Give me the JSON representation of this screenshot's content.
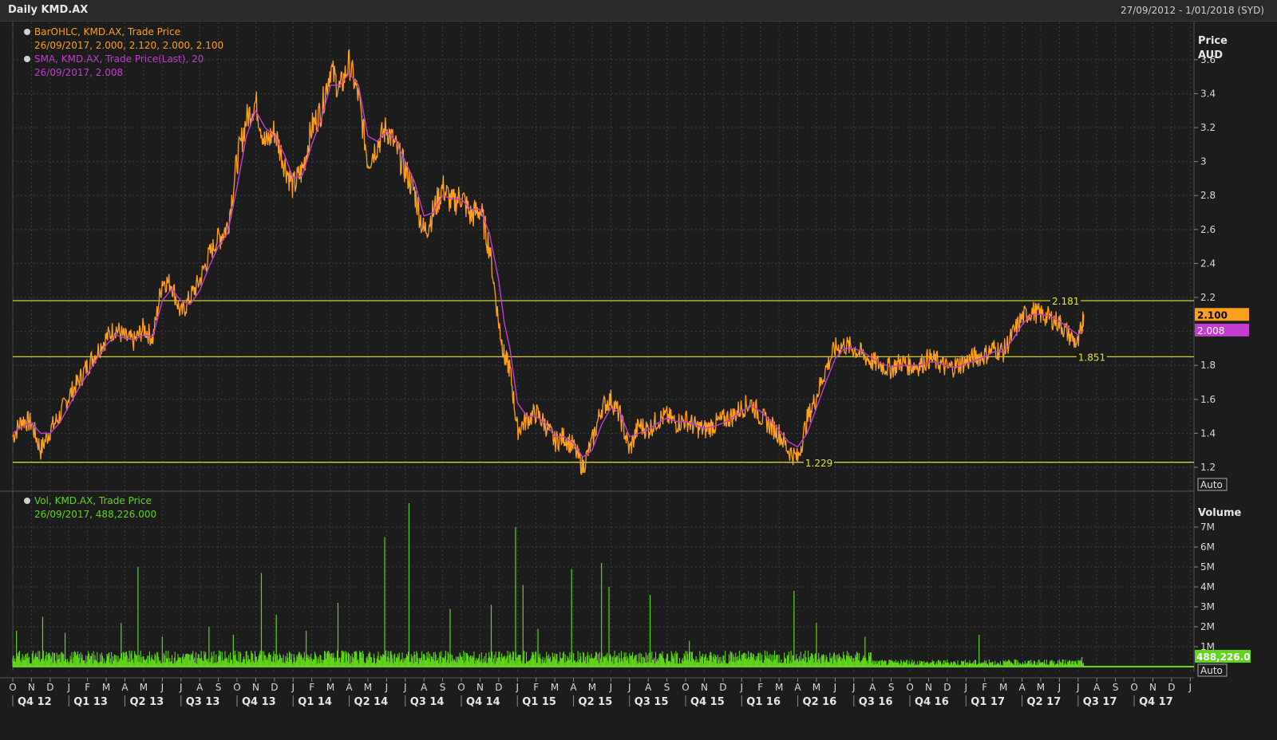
{
  "header": {
    "title": "Daily KMD.AX",
    "date_range": "27/09/2012 - 1/01/2018 (SYD)"
  },
  "colors": {
    "price": "#ff9f1c",
    "sma": "#c33ccf",
    "volume": "#5fd61a",
    "hline": "#e6e63a",
    "grid": "#3b3b3b"
  },
  "chart_data": [
    {
      "type": "line",
      "name": "price",
      "legend": [
        {
          "line1": "BarOHLC, KMD.AX, Trade Price",
          "line2": "26/09/2017, 2.000, 2.120, 2.000, 2.100",
          "color": "#ff9f1c"
        },
        {
          "line1": "SMA, KMD.AX, Trade Price(Last),  20",
          "line2": "26/09/2017, 2.008",
          "color": "#c33ccf"
        }
      ],
      "ylabel_lines": [
        "Price",
        "AUD"
      ],
      "y_ticks": [
        "1.2",
        "1.4",
        "1.6",
        "1.8",
        "2",
        "2.2",
        "2.4",
        "2.6",
        "2.8",
        "3",
        "3.2",
        "3.4",
        "3.6"
      ],
      "ylim": [
        1.12,
        3.82
      ],
      "xlim": [
        0,
        63.2
      ],
      "log_scale": false,
      "grid": true,
      "last_price_label": "2.100",
      "last_sma_label": "2.008",
      "auto_label": "Auto",
      "horizontal_lines": [
        {
          "value": 2.181,
          "label": "2.181",
          "label_x": 55.6
        },
        {
          "value": 1.851,
          "label": "1.851",
          "label_x": 57.0
        },
        {
          "value": 1.229,
          "label": "1.229",
          "label_x": 42.4
        }
      ],
      "series": [
        {
          "name": "BarOHLC, KMD.AX, Trade Price",
          "color": "#ff9f1c",
          "x": [
            0,
            0.5,
            1.0,
            1.5,
            2.0,
            2.5,
            3.0,
            3.5,
            4.0,
            4.5,
            5.0,
            5.5,
            6.0,
            6.5,
            7.0,
            7.5,
            8.0,
            8.5,
            9.0,
            9.5,
            10.0,
            10.5,
            11.0,
            11.5,
            12.0,
            12.5,
            13.0,
            13.5,
            14.0,
            14.5,
            15.0,
            15.5,
            16.0,
            16.5,
            17.0,
            17.5,
            18.0,
            18.5,
            19.0,
            19.5,
            20.0,
            20.5,
            21.0,
            21.5,
            22.0,
            22.5,
            23.0,
            23.5,
            24.0,
            24.5,
            25.0,
            25.5,
            26.0,
            26.3,
            26.6,
            27.0,
            27.5,
            28.0,
            28.5,
            29.0,
            29.5,
            30.0,
            30.5,
            31.0,
            31.5,
            32.0,
            32.5,
            33.0,
            33.5,
            34.0,
            34.5,
            35.0,
            35.5,
            36.0,
            36.5,
            37.0,
            37.5,
            38.0,
            38.5,
            39.0,
            39.5,
            40.0,
            40.5,
            41.0,
            41.5,
            42.0,
            42.5,
            43.0,
            43.5,
            44.0,
            44.5,
            45.0,
            45.5,
            46.0,
            46.5,
            47.0,
            47.5,
            48.0,
            48.5,
            49.0,
            49.5,
            50.0,
            50.5,
            51.0,
            51.5,
            52.0,
            52.5,
            53.0,
            53.5,
            54.0,
            54.5,
            55.0,
            55.5,
            56.0,
            56.5,
            57.0,
            57.3
          ],
          "y": [
            1.38,
            1.48,
            1.46,
            1.3,
            1.42,
            1.5,
            1.62,
            1.7,
            1.8,
            1.88,
            1.96,
            2.02,
            1.96,
            1.94,
            2.02,
            1.96,
            2.3,
            2.28,
            2.1,
            2.2,
            2.3,
            2.45,
            2.55,
            2.62,
            3.0,
            3.25,
            3.35,
            3.1,
            3.18,
            3.0,
            2.85,
            2.95,
            3.2,
            3.3,
            3.55,
            3.42,
            3.58,
            3.38,
            3.0,
            3.1,
            3.2,
            3.08,
            2.95,
            2.82,
            2.58,
            2.7,
            2.85,
            2.75,
            2.8,
            2.68,
            2.72,
            2.5,
            2.05,
            1.85,
            1.78,
            1.42,
            1.48,
            1.52,
            1.45,
            1.35,
            1.38,
            1.32,
            1.2,
            1.35,
            1.55,
            1.6,
            1.5,
            1.3,
            1.45,
            1.42,
            1.48,
            1.5,
            1.46,
            1.48,
            1.44,
            1.42,
            1.45,
            1.48,
            1.5,
            1.55,
            1.58,
            1.5,
            1.45,
            1.4,
            1.3,
            1.25,
            1.48,
            1.62,
            1.78,
            1.9,
            1.92,
            1.9,
            1.86,
            1.82,
            1.8,
            1.78,
            1.82,
            1.8,
            1.8,
            1.84,
            1.82,
            1.78,
            1.8,
            1.82,
            1.85,
            1.86,
            1.9,
            1.88,
            1.98,
            2.08,
            2.12,
            2.1,
            2.08,
            2.05,
            1.98,
            1.92,
            2.1
          ]
        },
        {
          "name": "SMA, KMD.AX, Trade Price(Last),  20",
          "color": "#c33ccf",
          "x": [
            0,
            0.5,
            1.0,
            1.5,
            2.0,
            2.5,
            3.0,
            3.5,
            4.0,
            4.5,
            5.0,
            5.5,
            6.0,
            6.5,
            7.0,
            7.5,
            8.0,
            8.5,
            9.0,
            9.5,
            10.0,
            10.5,
            11.0,
            11.5,
            12.0,
            12.5,
            13.0,
            13.5,
            14.0,
            14.5,
            15.0,
            15.5,
            16.0,
            16.5,
            17.0,
            17.5,
            18.0,
            18.5,
            19.0,
            19.5,
            20.0,
            20.5,
            21.0,
            21.5,
            22.0,
            22.5,
            23.0,
            23.5,
            24.0,
            24.5,
            25.0,
            25.5,
            26.0,
            26.3,
            26.6,
            27.0,
            27.5,
            28.0,
            28.5,
            29.0,
            29.5,
            30.0,
            30.5,
            31.0,
            31.5,
            32.0,
            32.5,
            33.0,
            33.5,
            34.0,
            34.5,
            35.0,
            35.5,
            36.0,
            36.5,
            37.0,
            37.5,
            38.0,
            38.5,
            39.0,
            39.5,
            40.0,
            40.5,
            41.0,
            41.5,
            42.0,
            42.5,
            43.0,
            43.5,
            44.0,
            44.5,
            45.0,
            45.5,
            46.0,
            46.5,
            47.0,
            47.5,
            48.0,
            48.5,
            49.0,
            49.5,
            50.0,
            50.5,
            51.0,
            51.5,
            52.0,
            52.5,
            53.0,
            53.5,
            54.0,
            54.5,
            55.0,
            55.5,
            56.0,
            56.5,
            57.0,
            57.3
          ],
          "y": [
            1.4,
            1.44,
            1.46,
            1.4,
            1.4,
            1.46,
            1.56,
            1.66,
            1.75,
            1.84,
            1.92,
            1.98,
            1.96,
            1.95,
            1.98,
            1.97,
            2.18,
            2.25,
            2.18,
            2.16,
            2.24,
            2.38,
            2.5,
            2.58,
            2.85,
            3.15,
            3.3,
            3.2,
            3.15,
            3.05,
            2.9,
            2.92,
            3.1,
            3.25,
            3.45,
            3.45,
            3.52,
            3.45,
            3.15,
            3.12,
            3.18,
            3.12,
            3.0,
            2.88,
            2.68,
            2.7,
            2.8,
            2.78,
            2.78,
            2.72,
            2.72,
            2.58,
            2.3,
            2.05,
            1.9,
            1.58,
            1.5,
            1.5,
            1.46,
            1.38,
            1.38,
            1.34,
            1.26,
            1.3,
            1.45,
            1.55,
            1.52,
            1.38,
            1.4,
            1.42,
            1.46,
            1.49,
            1.47,
            1.47,
            1.45,
            1.43,
            1.44,
            1.46,
            1.49,
            1.53,
            1.56,
            1.53,
            1.48,
            1.42,
            1.35,
            1.32,
            1.4,
            1.55,
            1.7,
            1.84,
            1.9,
            1.9,
            1.88,
            1.84,
            1.81,
            1.79,
            1.8,
            1.8,
            1.8,
            1.82,
            1.82,
            1.79,
            1.79,
            1.81,
            1.83,
            1.85,
            1.88,
            1.88,
            1.95,
            2.04,
            2.1,
            2.1,
            2.09,
            2.06,
            2.02,
            1.98,
            2.008
          ]
        }
      ]
    },
    {
      "type": "bar",
      "name": "volume",
      "legend": [
        {
          "line1": "Vol, KMD.AX, Trade Price",
          "line2": "26/09/2017, 488,226.000",
          "color": "#5fd61a"
        }
      ],
      "ylabel": "Volume",
      "y_ticks": [
        "1M",
        "2M",
        "3M",
        "4M",
        "5M",
        "6M",
        "7M"
      ],
      "ylim": [
        0,
        8000000
      ],
      "last_value_label": "488,226.0",
      "auto_label": "Auto",
      "base_volume": 450000,
      "spikes": [
        {
          "x": 0.2,
          "value": 1800000
        },
        {
          "x": 1.6,
          "value": 2500000
        },
        {
          "x": 2.8,
          "value": 1700000
        },
        {
          "x": 5.8,
          "value": 2200000
        },
        {
          "x": 6.7,
          "value": 5000000
        },
        {
          "x": 8.0,
          "value": 1500000
        },
        {
          "x": 10.5,
          "value": 2000000
        },
        {
          "x": 11.8,
          "value": 1600000
        },
        {
          "x": 13.3,
          "value": 4700000
        },
        {
          "x": 14.1,
          "value": 2600000
        },
        {
          "x": 15.7,
          "value": 1800000
        },
        {
          "x": 17.4,
          "value": 3200000
        },
        {
          "x": 19.9,
          "value": 6500000
        },
        {
          "x": 21.2,
          "value": 8200000
        },
        {
          "x": 23.4,
          "value": 2900000
        },
        {
          "x": 25.6,
          "value": 3100000
        },
        {
          "x": 26.9,
          "value": 7000000
        },
        {
          "x": 27.3,
          "value": 4100000
        },
        {
          "x": 28.1,
          "value": 1900000
        },
        {
          "x": 29.9,
          "value": 4900000
        },
        {
          "x": 31.5,
          "value": 5200000
        },
        {
          "x": 31.9,
          "value": 4000000
        },
        {
          "x": 34.1,
          "value": 3600000
        },
        {
          "x": 36.2,
          "value": 1300000
        },
        {
          "x": 41.8,
          "value": 3800000
        },
        {
          "x": 43.0,
          "value": 2200000
        },
        {
          "x": 45.6,
          "value": 1500000
        },
        {
          "x": 51.7,
          "value": 1600000
        },
        {
          "x": 57.2,
          "value": 488226
        }
      ],
      "x_ticks": {
        "months": [
          "O",
          "N",
          "D",
          "J",
          "F",
          "M",
          "A",
          "M",
          "J",
          "J",
          "A",
          "S",
          "O",
          "N",
          "D",
          "J",
          "F",
          "M",
          "A",
          "M",
          "J",
          "J",
          "A",
          "S",
          "O",
          "N",
          "D",
          "J",
          "F",
          "M",
          "A",
          "M",
          "J",
          "J",
          "A",
          "S",
          "O",
          "N",
          "D",
          "J",
          "F",
          "M",
          "A",
          "M",
          "J",
          "J",
          "A",
          "S",
          "O",
          "N",
          "D",
          "J",
          "F",
          "M",
          "A",
          "M",
          "J",
          "J",
          "A",
          "S",
          "O",
          "N",
          "D",
          "J"
        ],
        "quarters": [
          "Q4 12",
          "Q1 13",
          "Q2 13",
          "Q3 13",
          "Q4 13",
          "Q1 14",
          "Q2 14",
          "Q3 14",
          "Q4 14",
          "Q1 15",
          "Q2 15",
          "Q3 15",
          "Q4 15",
          "Q1 16",
          "Q2 16",
          "Q3 16",
          "Q4 16",
          "Q1 17",
          "Q2 17",
          "Q3 17",
          "Q4 17"
        ]
      }
    }
  ]
}
